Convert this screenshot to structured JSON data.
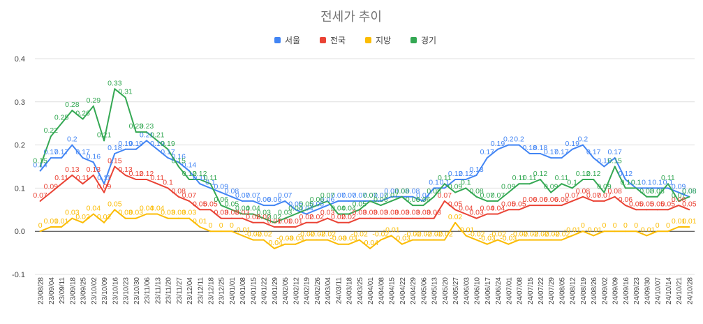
{
  "chart_data": {
    "type": "line",
    "title": "전세가 추이",
    "xlabel": "",
    "ylabel": "",
    "ylim": [
      -0.1,
      0.4
    ],
    "yticks": [
      "0.4",
      "0.3",
      "0.2",
      "0.1",
      "0.0",
      "-0.1"
    ],
    "grid": true,
    "legend_position": "top",
    "x": [
      "23/08/28",
      "23/09/04",
      "23/09/11",
      "23/09/18",
      "23/09/25",
      "23/10/02",
      "23/10/09",
      "23/10/16",
      "23/10/23",
      "23/10/30",
      "23/11/06",
      "23/11/13",
      "23/11/20",
      "23/11/27",
      "23/12/04",
      "23/12/11",
      "23/12/18",
      "23/12/25",
      "24/01/01",
      "24/01/08",
      "24/01/15",
      "24/01/22",
      "24/01/29",
      "24/02/05",
      "24/02/12",
      "24/02/19",
      "24/02/26",
      "24/03/04",
      "24/03/11",
      "24/03/18",
      "24/03/25",
      "24/04/01",
      "24/04/08",
      "24/04/15",
      "24/04/22",
      "24/04/29",
      "24/05/06",
      "24/05/13",
      "24/05/20",
      "24/05/27",
      "24/06/03",
      "24/06/10",
      "24/06/17",
      "24/06/24",
      "24/07/01",
      "24/07/08",
      "24/07/15",
      "24/07/22",
      "24/07/29",
      "24/08/05",
      "24/08/12",
      "24/08/19",
      "24/08/26",
      "24/09/02",
      "24/09/09",
      "24/09/16",
      "24/09/23",
      "24/09/30",
      "24/10/07",
      "24/10/14",
      "24/10/21",
      "24/10/28"
    ],
    "series": [
      {
        "name": "서울",
        "color": "#4285F4",
        "values": [
          0.14,
          0.17,
          0.17,
          0.2,
          0.17,
          0.16,
          0.11,
          0.18,
          0.19,
          0.19,
          0.21,
          0.19,
          0.17,
          0.16,
          0.14,
          0.11,
          0.1,
          0.09,
          0.08,
          0.07,
          0.07,
          0.06,
          0.06,
          0.07,
          0.05,
          0.04,
          0.05,
          0.06,
          0.07,
          0.07,
          0.07,
          0.07,
          0.07,
          0.08,
          0.08,
          0.08,
          0.07,
          0.1,
          0.1,
          0.12,
          0.12,
          0.13,
          0.17,
          0.19,
          0.2,
          0.2,
          0.18,
          0.18,
          0.17,
          0.17,
          0.19,
          0.2,
          0.17,
          0.15,
          0.17,
          0.12,
          0.1,
          0.1,
          0.1,
          0.1,
          0.09,
          0.08
        ]
      },
      {
        "name": "전국",
        "color": "#EA4335",
        "values": [
          0.07,
          0.09,
          0.11,
          0.13,
          0.11,
          0.13,
          0.09,
          0.15,
          0.13,
          0.12,
          0.12,
          0.11,
          0.1,
          0.08,
          0.07,
          0.05,
          0.05,
          0.03,
          0.03,
          0.03,
          0.02,
          0.02,
          0.01,
          0.01,
          0.01,
          0.02,
          0.02,
          0.03,
          0.02,
          0.02,
          0.03,
          0.03,
          0.03,
          0.03,
          0.03,
          0.03,
          0.03,
          0.03,
          0.07,
          0.05,
          0.04,
          0.03,
          0.04,
          0.04,
          0.05,
          0.05,
          0.06,
          0.06,
          0.06,
          0.06,
          0.07,
          0.08,
          0.07,
          0.07,
          0.08,
          0.06,
          0.05,
          0.05,
          0.05,
          0.05,
          0.06,
          0.05
        ]
      },
      {
        "name": "지방",
        "color": "#FBBC04",
        "values": [
          0.0,
          0.01,
          0.01,
          0.03,
          0.02,
          0.04,
          0.02,
          0.05,
          0.03,
          0.03,
          0.04,
          0.04,
          0.03,
          0.03,
          0.03,
          0.01,
          0.0,
          0.0,
          0.0,
          -0.01,
          -0.02,
          -0.02,
          -0.04,
          -0.03,
          -0.03,
          -0.02,
          -0.02,
          -0.02,
          -0.03,
          -0.03,
          -0.02,
          -0.04,
          -0.02,
          -0.01,
          -0.03,
          -0.02,
          -0.02,
          -0.02,
          -0.02,
          0.02,
          -0.01,
          -0.02,
          -0.03,
          -0.02,
          -0.03,
          -0.02,
          -0.02,
          -0.02,
          -0.02,
          -0.02,
          -0.01,
          0.0,
          -0.01,
          0.0,
          0.0,
          0.0,
          0.0,
          -0.01,
          0.0,
          0.0,
          0.01,
          0.01
        ]
      },
      {
        "name": "경기",
        "color": "#34A853",
        "values": [
          0.15,
          0.22,
          0.25,
          0.28,
          0.26,
          0.29,
          0.21,
          0.33,
          0.31,
          0.23,
          0.23,
          0.21,
          0.19,
          0.15,
          0.12,
          0.12,
          0.11,
          0.06,
          0.05,
          0.04,
          0.04,
          0.03,
          0.02,
          0.03,
          0.04,
          0.05,
          0.06,
          0.07,
          0.04,
          0.04,
          0.05,
          0.07,
          0.06,
          0.07,
          0.08,
          0.06,
          0.06,
          0.08,
          0.11,
          0.09,
          0.1,
          0.08,
          0.07,
          0.07,
          0.09,
          0.11,
          0.11,
          0.12,
          0.09,
          0.11,
          0.1,
          0.12,
          0.12,
          0.09,
          0.15,
          0.1,
          0.1,
          0.08,
          0.08,
          0.11,
          0.07,
          0.08
        ]
      }
    ]
  }
}
